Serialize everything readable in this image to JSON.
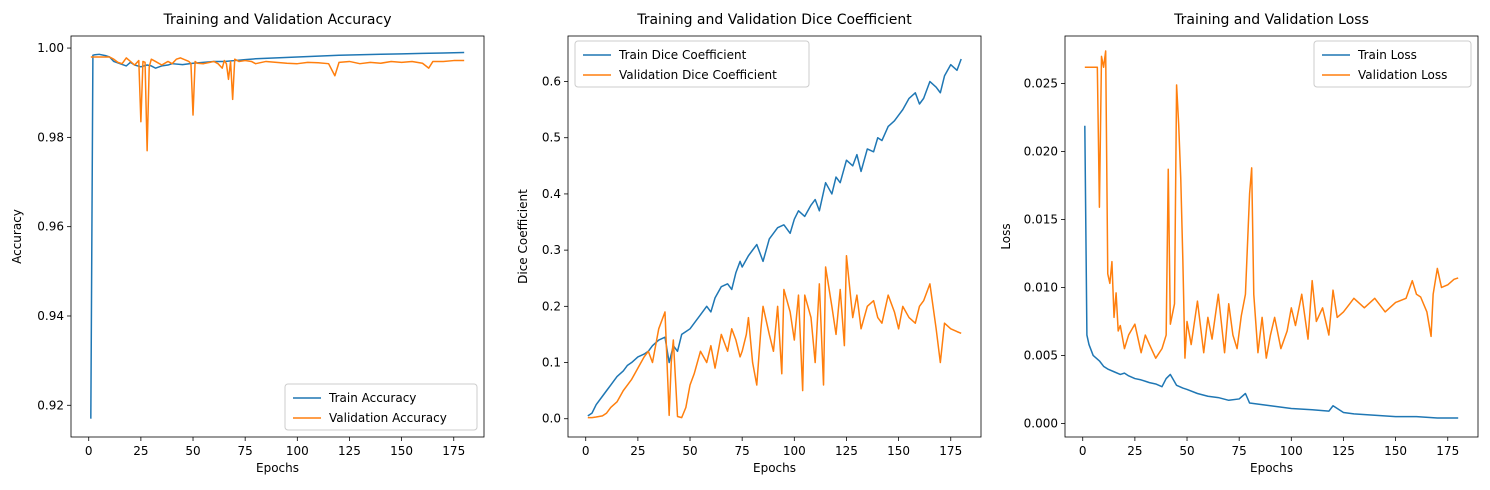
{
  "colors": {
    "train": "#1f77b4",
    "validation": "#ff7f0e"
  },
  "chart_data": [
    {
      "type": "line",
      "title": "Training and Validation Accuracy",
      "xlabel": "Epochs",
      "ylabel": "Accuracy",
      "xlim": [
        -8.5,
        189.5
      ],
      "ylim": [
        0.9129,
        1.0027
      ],
      "xticks": [
        0,
        25,
        50,
        75,
        100,
        125,
        150,
        175
      ],
      "yticks": [
        0.92,
        0.94,
        0.96,
        0.98,
        1.0
      ],
      "ytick_labels": [
        "0.92",
        "0.94",
        "0.96",
        "0.98",
        "1.00"
      ],
      "legend_loc": "lower-right",
      "series": [
        {
          "name": "Train Accuracy",
          "color": "#1f77b4",
          "x": [
            1,
            2,
            3,
            5,
            8,
            10,
            12,
            15,
            18,
            20,
            22,
            25,
            28,
            30,
            32,
            35,
            38,
            40,
            45,
            50,
            55,
            60,
            65,
            70,
            75,
            80,
            90,
            100,
            110,
            120,
            130,
            140,
            150,
            160,
            170,
            180
          ],
          "y": [
            0.917,
            0.9984,
            0.9985,
            0.9986,
            0.9983,
            0.998,
            0.997,
            0.9965,
            0.996,
            0.9968,
            0.9962,
            0.9958,
            0.9962,
            0.996,
            0.9955,
            0.996,
            0.9962,
            0.9965,
            0.9963,
            0.9966,
            0.9968,
            0.997,
            0.997,
            0.9972,
            0.9974,
            0.9976,
            0.9978,
            0.998,
            0.9982,
            0.9984,
            0.9985,
            0.9986,
            0.9987,
            0.9988,
            0.9989,
            0.999
          ]
        },
        {
          "name": "Validation Accuracy",
          "color": "#ff7f0e",
          "x": [
            1,
            5,
            10,
            12,
            14,
            16,
            18,
            20,
            22,
            24,
            25,
            26,
            27,
            28,
            29,
            30,
            32,
            35,
            38,
            40,
            42,
            44,
            46,
            48,
            49,
            50,
            51,
            52,
            55,
            58,
            60,
            62,
            64,
            65,
            66,
            67,
            68,
            69,
            70,
            72,
            75,
            78,
            80,
            85,
            90,
            95,
            100,
            105,
            110,
            115,
            118,
            120,
            125,
            130,
            135,
            140,
            145,
            150,
            155,
            160,
            163,
            165,
            170,
            175,
            180
          ],
          "y": [
            0.998,
            0.998,
            0.998,
            0.9975,
            0.9968,
            0.9965,
            0.9978,
            0.997,
            0.9962,
            0.9972,
            0.9835,
            0.997,
            0.9968,
            0.977,
            0.9958,
            0.9975,
            0.997,
            0.9962,
            0.997,
            0.9965,
            0.9975,
            0.9978,
            0.9974,
            0.997,
            0.9965,
            0.985,
            0.997,
            0.9966,
            0.9965,
            0.9968,
            0.997,
            0.9965,
            0.9955,
            0.9972,
            0.9965,
            0.993,
            0.997,
            0.9885,
            0.9975,
            0.997,
            0.9972,
            0.997,
            0.9965,
            0.997,
            0.9968,
            0.9966,
            0.9965,
            0.9968,
            0.9967,
            0.9965,
            0.9938,
            0.9968,
            0.997,
            0.9965,
            0.9968,
            0.9966,
            0.997,
            0.9968,
            0.997,
            0.9966,
            0.9955,
            0.997,
            0.997,
            0.9972,
            0.9972
          ]
        }
      ]
    },
    {
      "type": "line",
      "title": "Training and Validation Dice Coefficient",
      "xlabel": "Epochs",
      "ylabel": "Dice Coefficient",
      "xlim": [
        -8.5,
        189.5
      ],
      "ylim": [
        -0.0325,
        0.681
      ],
      "xticks": [
        0,
        25,
        50,
        75,
        100,
        125,
        150,
        175
      ],
      "yticks": [
        0.0,
        0.1,
        0.2,
        0.3,
        0.4,
        0.5,
        0.6
      ],
      "ytick_labels": [
        "0.0",
        "0.1",
        "0.2",
        "0.3",
        "0.4",
        "0.5",
        "0.6"
      ],
      "legend_loc": "upper-left",
      "series": [
        {
          "name": "Train Dice Coefficient",
          "color": "#1f77b4",
          "x": [
            1,
            3,
            5,
            8,
            10,
            12,
            15,
            18,
            20,
            22,
            25,
            28,
            30,
            32,
            35,
            38,
            40,
            42,
            44,
            46,
            48,
            50,
            52,
            55,
            58,
            60,
            62,
            65,
            68,
            70,
            72,
            74,
            75,
            78,
            80,
            82,
            85,
            88,
            90,
            92,
            95,
            98,
            100,
            102,
            105,
            108,
            110,
            112,
            115,
            118,
            120,
            122,
            125,
            128,
            130,
            132,
            135,
            138,
            140,
            142,
            145,
            148,
            150,
            152,
            155,
            158,
            160,
            162,
            165,
            168,
            170,
            172,
            175,
            178,
            180
          ],
          "y": [
            0.005,
            0.01,
            0.025,
            0.04,
            0.05,
            0.06,
            0.075,
            0.085,
            0.095,
            0.1,
            0.11,
            0.115,
            0.12,
            0.13,
            0.14,
            0.145,
            0.1,
            0.13,
            0.12,
            0.15,
            0.155,
            0.16,
            0.17,
            0.185,
            0.2,
            0.19,
            0.215,
            0.235,
            0.24,
            0.23,
            0.26,
            0.28,
            0.27,
            0.29,
            0.3,
            0.31,
            0.28,
            0.32,
            0.33,
            0.34,
            0.345,
            0.33,
            0.355,
            0.37,
            0.36,
            0.38,
            0.39,
            0.37,
            0.42,
            0.4,
            0.43,
            0.42,
            0.46,
            0.45,
            0.47,
            0.44,
            0.48,
            0.475,
            0.5,
            0.495,
            0.52,
            0.53,
            0.54,
            0.55,
            0.57,
            0.58,
            0.56,
            0.57,
            0.6,
            0.59,
            0.58,
            0.61,
            0.63,
            0.62,
            0.64
          ]
        },
        {
          "name": "Validation Dice Coefficient",
          "color": "#ff7f0e",
          "x": [
            1,
            3,
            5,
            8,
            10,
            12,
            15,
            18,
            20,
            22,
            25,
            28,
            30,
            32,
            35,
            38,
            40,
            41,
            42,
            44,
            46,
            48,
            50,
            52,
            55,
            58,
            60,
            62,
            65,
            68,
            70,
            72,
            74,
            75,
            77,
            78,
            80,
            82,
            84,
            85,
            88,
            90,
            92,
            94,
            95,
            98,
            100,
            102,
            104,
            105,
            108,
            110,
            112,
            114,
            115,
            118,
            120,
            122,
            124,
            125,
            128,
            130,
            132,
            135,
            138,
            140,
            142,
            145,
            148,
            150,
            152,
            155,
            158,
            160,
            162,
            165,
            168,
            170,
            172,
            175,
            178,
            180
          ],
          "y": [
            0.002,
            0.002,
            0.003,
            0.005,
            0.01,
            0.02,
            0.03,
            0.05,
            0.06,
            0.07,
            0.09,
            0.11,
            0.12,
            0.1,
            0.16,
            0.19,
            0.006,
            0.1,
            0.14,
            0.004,
            0.002,
            0.02,
            0.06,
            0.08,
            0.12,
            0.1,
            0.13,
            0.09,
            0.15,
            0.12,
            0.16,
            0.14,
            0.11,
            0.12,
            0.15,
            0.18,
            0.1,
            0.06,
            0.16,
            0.2,
            0.15,
            0.12,
            0.2,
            0.08,
            0.23,
            0.19,
            0.14,
            0.22,
            0.05,
            0.22,
            0.18,
            0.1,
            0.24,
            0.06,
            0.27,
            0.2,
            0.15,
            0.23,
            0.13,
            0.29,
            0.18,
            0.22,
            0.16,
            0.2,
            0.21,
            0.18,
            0.17,
            0.22,
            0.19,
            0.16,
            0.2,
            0.18,
            0.17,
            0.2,
            0.21,
            0.24,
            0.16,
            0.1,
            0.17,
            0.16,
            0.155,
            0.152
          ]
        }
      ]
    },
    {
      "type": "line",
      "title": "Training and Validation Loss",
      "xlabel": "Epochs",
      "ylabel": "Loss",
      "xlim": [
        -8.5,
        189.5
      ],
      "ylim": [
        -0.001,
        0.0285
      ],
      "xticks": [
        0,
        25,
        50,
        75,
        100,
        125,
        150,
        175
      ],
      "yticks": [
        0.0,
        0.005,
        0.01,
        0.015,
        0.02,
        0.025
      ],
      "ytick_labels": [
        "0.000",
        "0.005",
        "0.010",
        "0.015",
        "0.020",
        "0.025"
      ],
      "legend_loc": "upper-right",
      "series": [
        {
          "name": "Train Loss",
          "color": "#1f77b4",
          "x": [
            1,
            2,
            3,
            5,
            8,
            10,
            12,
            15,
            18,
            20,
            22,
            25,
            28,
            30,
            32,
            35,
            38,
            40,
            42,
            45,
            48,
            50,
            55,
            60,
            65,
            70,
            75,
            78,
            80,
            85,
            90,
            95,
            100,
            110,
            118,
            120,
            125,
            130,
            140,
            150,
            160,
            170,
            180
          ],
          "y": [
            0.0219,
            0.0065,
            0.0058,
            0.005,
            0.0046,
            0.0042,
            0.004,
            0.0038,
            0.0036,
            0.0037,
            0.0035,
            0.0033,
            0.0032,
            0.0031,
            0.003,
            0.0029,
            0.0027,
            0.0033,
            0.0036,
            0.0028,
            0.0026,
            0.0025,
            0.0022,
            0.002,
            0.0019,
            0.0017,
            0.0018,
            0.0022,
            0.0015,
            0.0014,
            0.0013,
            0.0012,
            0.0011,
            0.001,
            0.0009,
            0.0013,
            0.0008,
            0.0007,
            0.0006,
            0.0005,
            0.0005,
            0.0004,
            0.0004
          ]
        },
        {
          "name": "Validation Loss",
          "color": "#ff7f0e",
          "x": [
            1,
            3,
            5,
            6,
            7,
            8,
            9,
            10,
            11,
            12,
            13,
            14,
            15,
            16,
            17,
            18,
            20,
            22,
            25,
            28,
            30,
            32,
            35,
            38,
            40,
            41,
            42,
            44,
            45,
            46,
            47,
            48,
            49,
            50,
            52,
            55,
            58,
            60,
            62,
            65,
            68,
            70,
            72,
            74,
            76,
            78,
            80,
            81,
            82,
            84,
            86,
            88,
            90,
            92,
            95,
            98,
            100,
            102,
            105,
            108,
            110,
            112,
            115,
            118,
            120,
            122,
            125,
            128,
            130,
            135,
            140,
            145,
            150,
            155,
            158,
            160,
            162,
            165,
            167,
            168,
            170,
            172,
            175,
            178,
            180
          ],
          "y": [
            0.0262,
            0.0262,
            0.0262,
            0.0262,
            0.0262,
            0.0159,
            0.027,
            0.0262,
            0.0274,
            0.011,
            0.0103,
            0.0119,
            0.0078,
            0.0096,
            0.0068,
            0.0072,
            0.0055,
            0.0065,
            0.0073,
            0.0052,
            0.0065,
            0.0058,
            0.0048,
            0.0055,
            0.0065,
            0.0187,
            0.0073,
            0.0088,
            0.0249,
            0.022,
            0.018,
            0.012,
            0.0048,
            0.0075,
            0.0058,
            0.009,
            0.0052,
            0.0078,
            0.0062,
            0.0095,
            0.0052,
            0.0088,
            0.0065,
            0.0055,
            0.0079,
            0.0095,
            0.0169,
            0.0188,
            0.0095,
            0.0052,
            0.0078,
            0.0048,
            0.0065,
            0.0078,
            0.0055,
            0.0068,
            0.0085,
            0.0072,
            0.0095,
            0.0062,
            0.0105,
            0.0075,
            0.0085,
            0.0065,
            0.0098,
            0.0078,
            0.0082,
            0.0088,
            0.0092,
            0.0085,
            0.0092,
            0.0082,
            0.0089,
            0.0092,
            0.0105,
            0.0095,
            0.0093,
            0.0082,
            0.0064,
            0.0095,
            0.0114,
            0.01,
            0.0102,
            0.0106,
            0.0107
          ]
        }
      ]
    }
  ]
}
